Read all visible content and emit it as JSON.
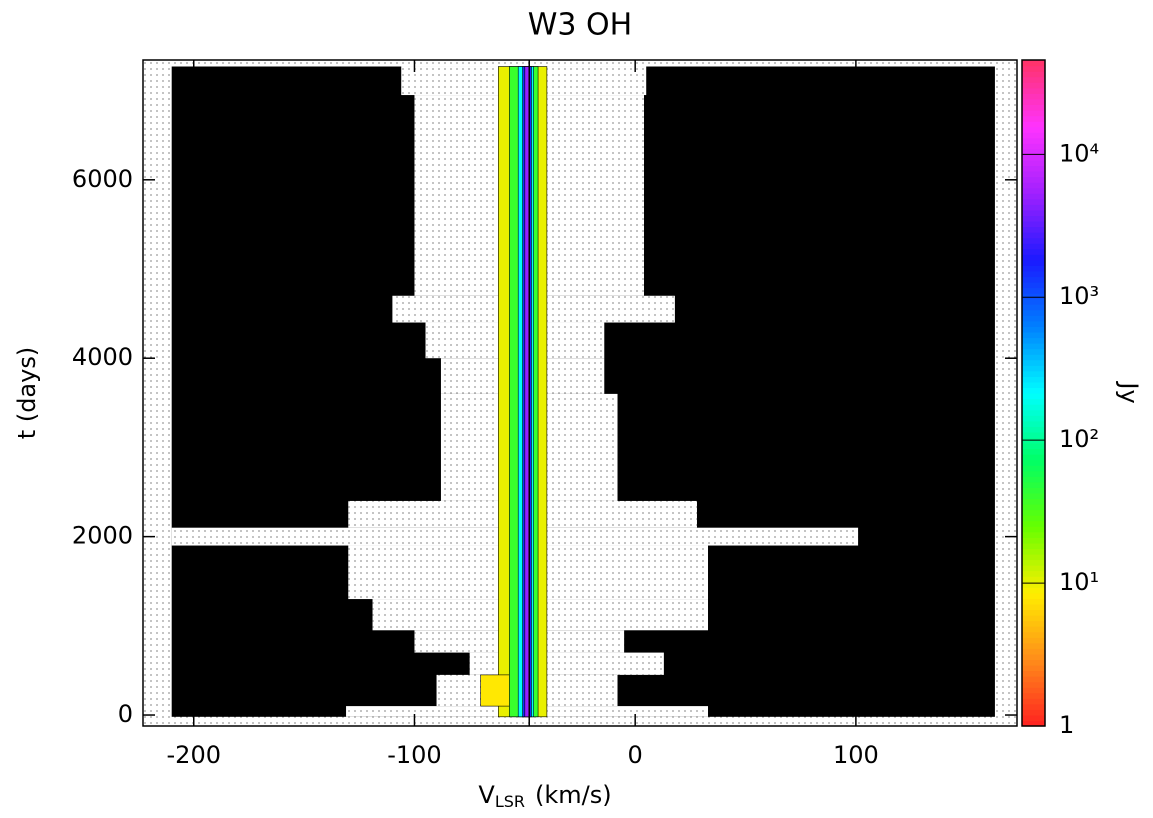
{
  "chart_data": {
    "type": "dynamic-spectrum",
    "title": "W3 OH",
    "xlabel": {
      "main": "V",
      "sub": "LSR",
      "unit": "(km/s)"
    },
    "ylabel": "t (days)",
    "colorbar_label": "Jy",
    "xlim": [
      -223,
      173
    ],
    "ylim": [
      -123,
      7343
    ],
    "xticks": [
      -200,
      -100,
      0,
      100
    ],
    "yticks": [
      0,
      2000,
      4000,
      6000
    ],
    "clim": [
      1,
      45700
    ],
    "log_color": true,
    "cticks": [
      1,
      {
        "value": 10,
        "label": "10¹"
      },
      {
        "value": 100,
        "label": "10²"
      },
      {
        "value": 1000,
        "label": "10³"
      },
      {
        "value": 10000,
        "label": "10⁴"
      }
    ],
    "colormap": [
      "#ff2020",
      "#ff8c1a",
      "#ffee00",
      "#66ff00",
      "#00ff66",
      "#00ffff",
      "#0080ff",
      "#1a1aff",
      "#a020ff",
      "#ff33ff",
      "#ff3366"
    ],
    "masked_color": "#000000",
    "extent": {
      "v": [
        -210,
        163
      ],
      "t": [
        -20,
        7270
      ]
    },
    "coverage": [
      {
        "t": [
          -20,
          100
        ],
        "v": [
          -131,
          33
        ]
      },
      {
        "t": [
          100,
          450
        ],
        "v": [
          -90,
          -8
        ]
      },
      {
        "t": [
          450,
          700
        ],
        "v": [
          -75,
          13
        ]
      },
      {
        "t": [
          700,
          950
        ],
        "v": [
          -100,
          -5
        ]
      },
      {
        "t": [
          950,
          1300
        ],
        "v": [
          -119,
          33
        ]
      },
      {
        "t": [
          1300,
          1900
        ],
        "v": [
          -130,
          33
        ]
      },
      {
        "t": [
          1900,
          2100
        ],
        "v": [
          -210,
          101
        ]
      },
      {
        "t": [
          2100,
          2400
        ],
        "v": [
          -130,
          28
        ]
      },
      {
        "t": [
          2400,
          3600
        ],
        "v": [
          -88,
          -8
        ]
      },
      {
        "t": [
          3600,
          4000
        ],
        "v": [
          -88,
          -14
        ]
      },
      {
        "t": [
          4000,
          4400
        ],
        "v": [
          -95,
          -14
        ]
      },
      {
        "t": [
          4400,
          4700
        ],
        "v": [
          -110,
          18
        ]
      },
      {
        "t": [
          4700,
          6950
        ],
        "v": [
          -100,
          4
        ]
      },
      {
        "t": [
          6950,
          7270
        ],
        "v": [
          -106,
          5
        ]
      }
    ],
    "emission": [
      {
        "t": [
          -20,
          7270
        ],
        "v": [
          -62,
          -40
        ],
        "flux": 10
      },
      {
        "t": [
          100,
          450
        ],
        "v": [
          -70,
          -55
        ],
        "flux": 8
      },
      {
        "t": [
          -20,
          7270
        ],
        "v": [
          -57,
          -44
        ],
        "flux": 40
      },
      {
        "t": [
          -20,
          7270
        ],
        "v": [
          -53,
          -46
        ],
        "flux": 200
      },
      {
        "t": [
          -20,
          7270
        ],
        "v": [
          -51,
          -47
        ],
        "flux": 1500
      },
      {
        "t": [
          -20,
          7270
        ],
        "v": [
          -50,
          -48
        ],
        "flux": 5000
      }
    ],
    "marker_velocity": -48
  }
}
